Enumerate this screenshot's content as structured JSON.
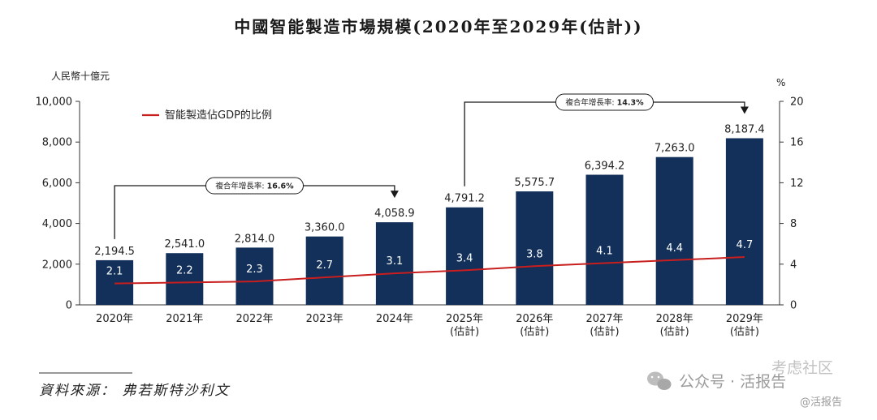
{
  "chart_data": {
    "type": "bar",
    "title": "中國智能製造市場規模(2020年至2029年(估計))",
    "y_left_label": "人民幣十億元",
    "y_right_label": "%",
    "y_left_ticks": [
      "0",
      "2,000",
      "4,000",
      "6,000",
      "8,000",
      "10,000"
    ],
    "y_right_ticks": [
      "0",
      "4",
      "8",
      "12",
      "16",
      "20"
    ],
    "ylim_left": [
      0,
      10000
    ],
    "ylim_right": [
      0,
      20
    ],
    "categories": [
      [
        "2020年"
      ],
      [
        "2021年"
      ],
      [
        "2022年"
      ],
      [
        "2023年"
      ],
      [
        "2024年"
      ],
      [
        "2025年",
        "(估計)"
      ],
      [
        "2026年",
        "(估計)"
      ],
      [
        "2027年",
        "(估計)"
      ],
      [
        "2028年",
        "(估計)"
      ],
      [
        "2029年",
        "(估計)"
      ]
    ],
    "bar_values": [
      2194.5,
      2541.0,
      2814.0,
      3360.0,
      4058.9,
      4791.2,
      5575.7,
      6394.2,
      7263.0,
      8187.4
    ],
    "bar_labels": [
      "2,194.5",
      "2,541.0",
      "2,814.0",
      "3,360.0",
      "4,058.9",
      "4,791.2",
      "5,575.7",
      "6,394.2",
      "7,263.0",
      "8,187.4"
    ],
    "line_series": {
      "name": "智能製造佔GDP的比例",
      "values": [
        2.1,
        2.2,
        2.3,
        2.7,
        3.1,
        3.4,
        3.8,
        4.1,
        4.4,
        4.7
      ],
      "labels": [
        "2.1",
        "2.2",
        "2.3",
        "2.7",
        "3.1",
        "3.4",
        "3.8",
        "4.1",
        "4.4",
        "4.7"
      ]
    },
    "annotations": [
      {
        "from_index": 0,
        "to_index": 4,
        "text": "複合年增長率: ",
        "rate": "16.6%"
      },
      {
        "from_index": 5,
        "to_index": 9,
        "text": "複合年增長率: ",
        "rate": "14.3%"
      }
    ],
    "grid": false,
    "legend_position": "top-left"
  },
  "source": "資料來源： 弗若斯特沙利文",
  "watermarks": [
    "公众号 · 活报告",
    "考虑社区",
    "@活报告"
  ],
  "colors": {
    "bar": "#12305a",
    "line": "#c81e1e",
    "text": "#222222"
  }
}
